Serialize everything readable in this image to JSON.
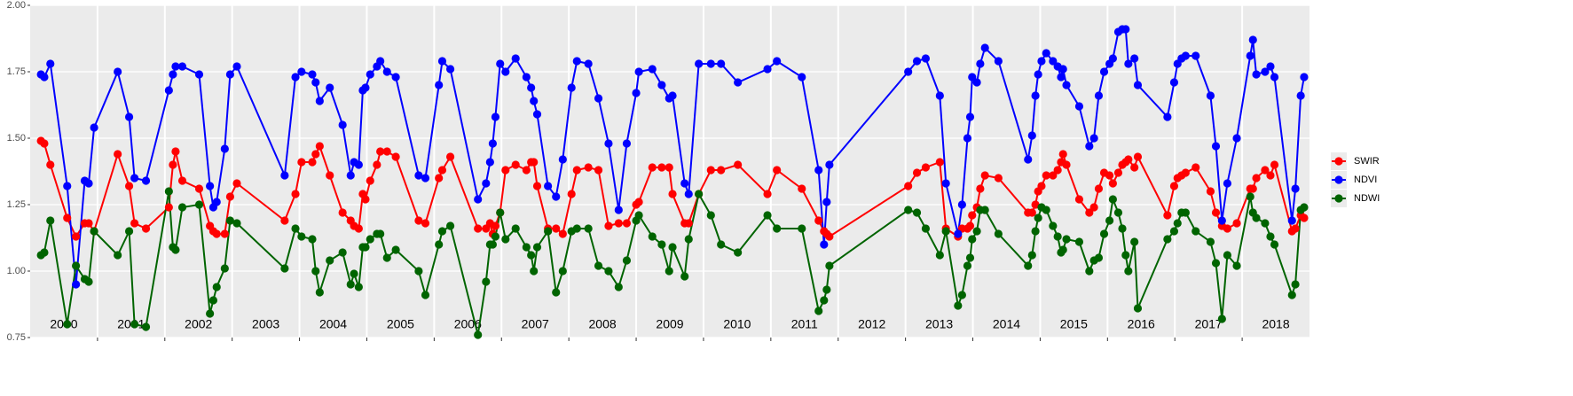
{
  "chart_data": {
    "type": "line",
    "x": [
      2000.16,
      2000.21,
      2000.3,
      2000.55,
      2000.68,
      2000.81,
      2000.87,
      2000.95,
      2001.3,
      2001.47,
      2001.55,
      2001.72,
      2002.06,
      2002.12,
      2002.16,
      2002.26,
      2002.51,
      2002.67,
      2002.72,
      2002.77,
      2002.89,
      2002.97,
      2003.07,
      2003.78,
      2003.94,
      2004.03,
      2004.19,
      2004.24,
      2004.3,
      2004.45,
      2004.64,
      2004.76,
      2004.81,
      2004.88,
      2004.94,
      2004.98,
      2005.05,
      2005.15,
      2005.2,
      2005.3,
      2005.43,
      2005.77,
      2005.87,
      2006.07,
      2006.12,
      2006.24,
      2006.65,
      2006.77,
      2006.83,
      2006.87,
      2006.91,
      2006.98,
      2007.06,
      2007.21,
      2007.37,
      2007.44,
      2007.48,
      2007.53,
      2007.69,
      2007.81,
      2007.91,
      2008.04,
      2008.12,
      2008.29,
      2008.44,
      2008.59,
      2008.74,
      2008.86,
      2009.0,
      2009.04,
      2009.24,
      2009.38,
      2009.49,
      2009.54,
      2009.72,
      2009.78,
      2009.93,
      2010.11,
      2010.26,
      2010.51,
      2010.95,
      2011.09,
      2011.46,
      2011.71,
      2011.79,
      2011.83,
      2011.87,
      2013.04,
      2013.17,
      2013.3,
      2013.51,
      2013.6,
      2013.78,
      2013.84,
      2013.92,
      2013.96,
      2013.99,
      2014.06,
      2014.11,
      2014.18,
      2014.38,
      2014.82,
      2014.88,
      2014.93,
      2014.97,
      2015.02,
      2015.09,
      2015.19,
      2015.26,
      2015.31,
      2015.34,
      2015.39,
      2015.58,
      2015.73,
      2015.8,
      2015.87,
      2015.95,
      2016.03,
      2016.08,
      2016.16,
      2016.22,
      2016.27,
      2016.31,
      2016.4,
      2016.45,
      2016.89,
      2016.99,
      2017.04,
      2017.1,
      2017.16,
      2017.31,
      2017.53,
      2017.61,
      2017.7,
      2017.78,
      2017.92,
      2018.12,
      2018.16,
      2018.21,
      2018.34,
      2018.42,
      2018.48,
      2018.74,
      2018.79,
      2018.87,
      2018.92
    ],
    "series": [
      {
        "name": "SWIR",
        "color": "#ff0000",
        "values": [
          1.49,
          1.48,
          1.4,
          1.2,
          1.13,
          1.18,
          1.18,
          1.15,
          1.44,
          1.32,
          1.18,
          1.16,
          1.24,
          1.4,
          1.45,
          1.34,
          1.31,
          1.17,
          1.15,
          1.14,
          1.14,
          1.28,
          1.33,
          1.19,
          1.29,
          1.41,
          1.41,
          1.44,
          1.47,
          1.36,
          1.22,
          1.19,
          1.17,
          1.16,
          1.29,
          1.27,
          1.34,
          1.4,
          1.45,
          1.45,
          1.43,
          1.19,
          1.18,
          1.35,
          1.38,
          1.43,
          1.16,
          1.16,
          1.18,
          1.14,
          1.17,
          1.22,
          1.38,
          1.4,
          1.38,
          1.41,
          1.41,
          1.32,
          1.16,
          1.16,
          1.14,
          1.29,
          1.38,
          1.39,
          1.38,
          1.17,
          1.18,
          1.18,
          1.25,
          1.26,
          1.39,
          1.39,
          1.39,
          1.29,
          1.18,
          1.18,
          1.29,
          1.38,
          1.38,
          1.4,
          1.29,
          1.38,
          1.31,
          1.19,
          1.15,
          1.14,
          1.13,
          1.32,
          1.37,
          1.39,
          1.41,
          1.16,
          1.13,
          1.16,
          1.16,
          1.17,
          1.21,
          1.24,
          1.31,
          1.36,
          1.35,
          1.22,
          1.22,
          1.25,
          1.3,
          1.32,
          1.36,
          1.36,
          1.38,
          1.41,
          1.44,
          1.4,
          1.27,
          1.22,
          1.24,
          1.31,
          1.37,
          1.36,
          1.33,
          1.37,
          1.4,
          1.41,
          1.42,
          1.39,
          1.43,
          1.21,
          1.32,
          1.35,
          1.36,
          1.37,
          1.39,
          1.3,
          1.22,
          1.17,
          1.16,
          1.18,
          1.31,
          1.31,
          1.35,
          1.38,
          1.36,
          1.4,
          1.15,
          1.16,
          1.21,
          1.2
        ]
      },
      {
        "name": "NDVI",
        "color": "#0000ff",
        "values": [
          1.74,
          1.73,
          1.78,
          1.32,
          0.95,
          1.34,
          1.33,
          1.54,
          1.75,
          1.58,
          1.35,
          1.34,
          1.68,
          1.74,
          1.77,
          1.77,
          1.74,
          1.32,
          1.24,
          1.26,
          1.46,
          1.74,
          1.77,
          1.36,
          1.73,
          1.75,
          1.74,
          1.71,
          1.64,
          1.69,
          1.55,
          1.36,
          1.41,
          1.4,
          1.68,
          1.69,
          1.74,
          1.77,
          1.79,
          1.75,
          1.73,
          1.36,
          1.35,
          1.7,
          1.79,
          1.76,
          1.27,
          1.33,
          1.41,
          1.48,
          1.58,
          1.78,
          1.75,
          1.8,
          1.73,
          1.69,
          1.64,
          1.59,
          1.32,
          1.28,
          1.42,
          1.69,
          1.79,
          1.78,
          1.65,
          1.48,
          1.23,
          1.48,
          1.67,
          1.75,
          1.76,
          1.7,
          1.65,
          1.66,
          1.33,
          1.29,
          1.78,
          1.78,
          1.78,
          1.71,
          1.76,
          1.79,
          1.73,
          1.38,
          1.1,
          1.26,
          1.4,
          1.75,
          1.79,
          1.8,
          1.66,
          1.33,
          1.14,
          1.25,
          1.5,
          1.58,
          1.73,
          1.71,
          1.78,
          1.84,
          1.79,
          1.42,
          1.51,
          1.66,
          1.74,
          1.79,
          1.82,
          1.79,
          1.77,
          1.73,
          1.76,
          1.7,
          1.62,
          1.47,
          1.5,
          1.66,
          1.75,
          1.78,
          1.8,
          1.9,
          1.91,
          1.91,
          1.78,
          1.8,
          1.7,
          1.58,
          1.71,
          1.78,
          1.8,
          1.81,
          1.81,
          1.66,
          1.47,
          1.19,
          1.33,
          1.5,
          1.81,
          1.87,
          1.74,
          1.75,
          1.77,
          1.73,
          1.19,
          1.31,
          1.66,
          1.73
        ]
      },
      {
        "name": "NDWI",
        "color": "#006400",
        "values": [
          1.06,
          1.07,
          1.19,
          0.8,
          1.02,
          0.97,
          0.96,
          1.15,
          1.06,
          1.15,
          0.8,
          0.79,
          1.3,
          1.09,
          1.08,
          1.24,
          1.25,
          0.84,
          0.89,
          0.94,
          1.01,
          1.19,
          1.18,
          1.01,
          1.16,
          1.13,
          1.12,
          1.0,
          0.92,
          1.04,
          1.07,
          0.95,
          0.99,
          0.94,
          1.09,
          1.09,
          1.12,
          1.14,
          1.14,
          1.05,
          1.08,
          1.0,
          0.91,
          1.1,
          1.15,
          1.17,
          0.76,
          0.96,
          1.1,
          1.1,
          1.13,
          1.22,
          1.12,
          1.16,
          1.09,
          1.06,
          1.0,
          1.09,
          1.15,
          0.92,
          1.0,
          1.15,
          1.16,
          1.16,
          1.02,
          1.0,
          0.94,
          1.04,
          1.19,
          1.21,
          1.13,
          1.1,
          1.0,
          1.09,
          0.98,
          1.12,
          1.29,
          1.21,
          1.1,
          1.07,
          1.21,
          1.16,
          1.16,
          0.85,
          0.89,
          0.93,
          1.02,
          1.23,
          1.22,
          1.16,
          1.06,
          1.15,
          0.87,
          0.91,
          1.02,
          1.05,
          1.12,
          1.15,
          1.23,
          1.23,
          1.14,
          1.02,
          1.06,
          1.15,
          1.2,
          1.24,
          1.23,
          1.17,
          1.13,
          1.07,
          1.08,
          1.12,
          1.11,
          1.0,
          1.04,
          1.05,
          1.14,
          1.19,
          1.27,
          1.22,
          1.16,
          1.06,
          1.0,
          1.11,
          0.86,
          1.12,
          1.15,
          1.18,
          1.22,
          1.22,
          1.15,
          1.11,
          1.03,
          0.82,
          1.06,
          1.02,
          1.28,
          1.22,
          1.2,
          1.18,
          1.13,
          1.1,
          0.91,
          0.95,
          1.23,
          1.24
        ]
      }
    ],
    "xlim": [
      2000,
      2019
    ],
    "xticks": [
      {
        "value": 2000.5,
        "label": "2000"
      },
      {
        "value": 2001.5,
        "label": "2001"
      },
      {
        "value": 2002.5,
        "label": "2002"
      },
      {
        "value": 2003.5,
        "label": "2003"
      },
      {
        "value": 2004.5,
        "label": "2004"
      },
      {
        "value": 2005.5,
        "label": "2005"
      },
      {
        "value": 2006.5,
        "label": "2006"
      },
      {
        "value": 2007.5,
        "label": "2007"
      },
      {
        "value": 2008.5,
        "label": "2008"
      },
      {
        "value": 2009.5,
        "label": "2009"
      },
      {
        "value": 2010.5,
        "label": "2010"
      },
      {
        "value": 2011.5,
        "label": "2011"
      },
      {
        "value": 2012.5,
        "label": "2012"
      },
      {
        "value": 2013.5,
        "label": "2013"
      },
      {
        "value": 2014.5,
        "label": "2014"
      },
      {
        "value": 2015.5,
        "label": "2015"
      },
      {
        "value": 2016.5,
        "label": "2016"
      },
      {
        "value": 2017.5,
        "label": "2017"
      },
      {
        "value": 2018.5,
        "label": "2018"
      }
    ],
    "xgrid": [
      2001,
      2002,
      2003,
      2004,
      2005,
      2006,
      2007,
      2008,
      2009,
      2010,
      2011,
      2012,
      2013,
      2014,
      2015,
      2016,
      2017,
      2018
    ],
    "ylim": [
      0.75,
      2.0
    ],
    "yticks": [
      {
        "value": 0.75,
        "label": "0.75"
      },
      {
        "value": 1.0,
        "label": "1.00"
      },
      {
        "value": 1.25,
        "label": "1.25"
      },
      {
        "value": 1.5,
        "label": "1.50"
      },
      {
        "value": 1.75,
        "label": "1.75"
      },
      {
        "value": 2.0,
        "label": "2.00"
      }
    ],
    "grid": true,
    "legend": "right"
  }
}
